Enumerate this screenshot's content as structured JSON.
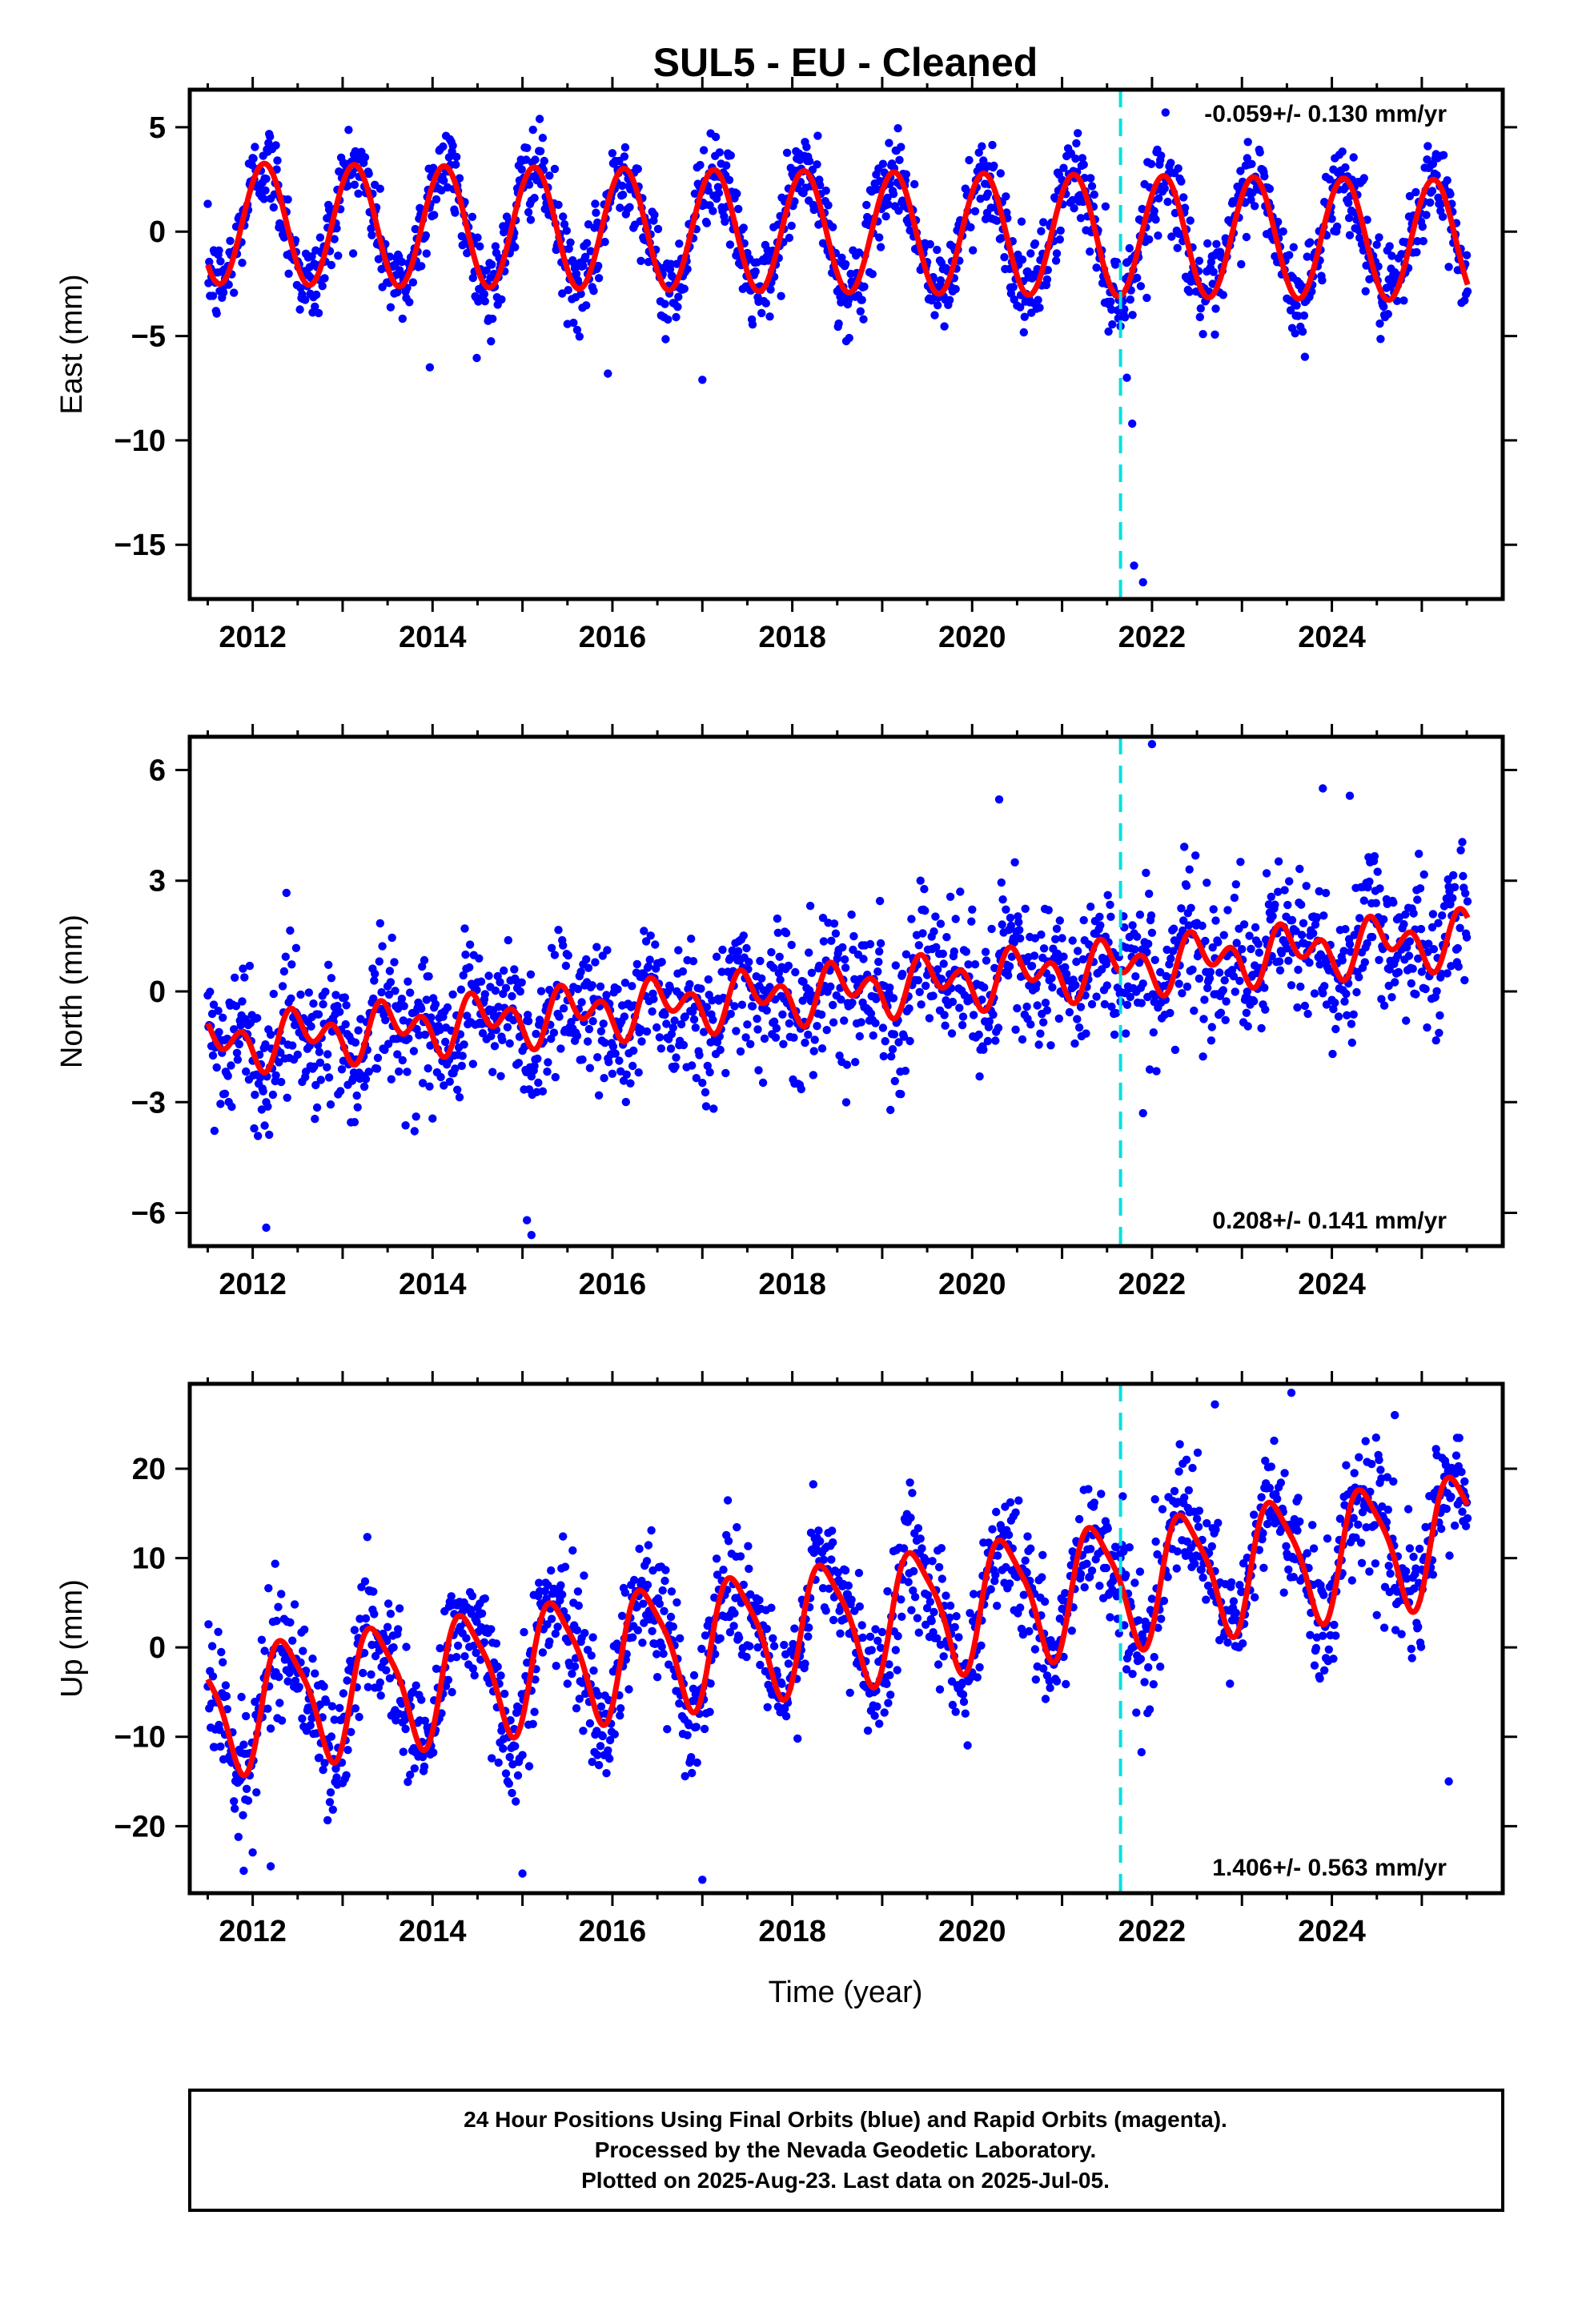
{
  "title": "SUL5  - EU - Cleaned",
  "xlabel": "Time (year)",
  "footer": {
    "line1": "24 Hour Positions Using Final Orbits (blue) and Rapid Orbits (magenta).",
    "line2": "Processed by the Nevada Geodetic Laboratory.",
    "line3": "Plotted on 2025-Aug-23. Last data on 2025-Jul-05."
  },
  "colors": {
    "points": "#0000ff",
    "model": "#ff0000",
    "event_line": "#00e0e0",
    "frame": "#000000"
  },
  "chart_data": [
    {
      "type": "scatter",
      "name": "East",
      "ylabel": "East (mm)",
      "rate_label": "-0.059+/- 0.130 mm/yr",
      "rate_position": "top-right",
      "xlim": [
        2011.3,
        2025.9
      ],
      "ylim": [
        -17.6,
        6.8
      ],
      "x_ticks": [
        2012,
        2014,
        2016,
        2018,
        2020,
        2022,
        2024
      ],
      "y_ticks": [
        5,
        0,
        -5,
        -10,
        -15
      ],
      "event_line_x": 2021.65,
      "data_start": 2011.5,
      "data_end": 2025.51,
      "model": {
        "offset": 0.4,
        "trend": -0.059,
        "amp_annual": 2.9,
        "phase_annual": 0.13,
        "amp_semi": 0.0,
        "phase_semi": 0.0
      },
      "scatter_sd": 1.05,
      "outliers": [
        [
          2021.8,
          -16.0
        ],
        [
          2021.9,
          -16.8
        ],
        [
          2021.78,
          -9.2
        ],
        [
          2021.72,
          -7.0
        ],
        [
          2017.0,
          -7.1
        ],
        [
          2015.95,
          -6.8
        ],
        [
          2013.97,
          -6.5
        ],
        [
          2023.7,
          -6.0
        ]
      ]
    },
    {
      "type": "scatter",
      "name": "North",
      "ylabel": "North (mm)",
      "rate_label": "0.208+/- 0.141 mm/yr",
      "rate_position": "bottom-right",
      "xlim": [
        2011.3,
        2025.9
      ],
      "ylim": [
        -6.9,
        6.9
      ],
      "x_ticks": [
        2012,
        2014,
        2016,
        2018,
        2020,
        2022,
        2024
      ],
      "y_ticks": [
        6,
        3,
        0,
        -3,
        -6
      ],
      "event_line_x": 2021.65,
      "data_start": 2011.5,
      "data_end": 2025.51,
      "model": {
        "offset": -1.45,
        "trend": 0.208,
        "amp_annual": 0.45,
        "phase_annual": 0.55,
        "amp_semi": 0.5,
        "phase_semi": 0.4
      },
      "scatter_sd": 0.95,
      "outliers": [
        [
          2022.0,
          6.7
        ],
        [
          2020.3,
          5.2
        ],
        [
          2015.1,
          -6.6
        ],
        [
          2012.15,
          -6.4
        ],
        [
          2015.05,
          -6.2
        ],
        [
          2023.9,
          5.5
        ],
        [
          2024.2,
          5.3
        ],
        [
          2021.9,
          -3.3
        ]
      ]
    },
    {
      "type": "scatter",
      "name": "Up",
      "ylabel": "Up (mm)",
      "rate_label": "1.406+/- 0.563 mm/yr",
      "rate_position": "bottom-right",
      "xlim": [
        2011.3,
        2025.9
      ],
      "ylim": [
        -27.5,
        29.5
      ],
      "x_ticks": [
        2012,
        2014,
        2016,
        2018,
        2020,
        2022,
        2024
      ],
      "y_ticks": [
        20,
        10,
        0,
        -10,
        -20
      ],
      "event_line_x": 2021.65,
      "data_start": 2011.5,
      "data_end": 2025.51,
      "model": {
        "offset": -7.0,
        "trend": 1.406,
        "amp_annual": 6.8,
        "phase_annual": 0.37,
        "amp_semi": 1.5,
        "phase_semi": 0.2
      },
      "scatter_sd": 3.6,
      "outliers": [
        [
          2023.55,
          28.5
        ],
        [
          2022.7,
          27.2
        ],
        [
          2024.7,
          26.0
        ],
        [
          2017.0,
          -26.0
        ],
        [
          2015.0,
          -25.3
        ],
        [
          2011.9,
          -25.0
        ],
        [
          2012.2,
          -24.5
        ],
        [
          2025.3,
          -15.0
        ]
      ]
    }
  ]
}
